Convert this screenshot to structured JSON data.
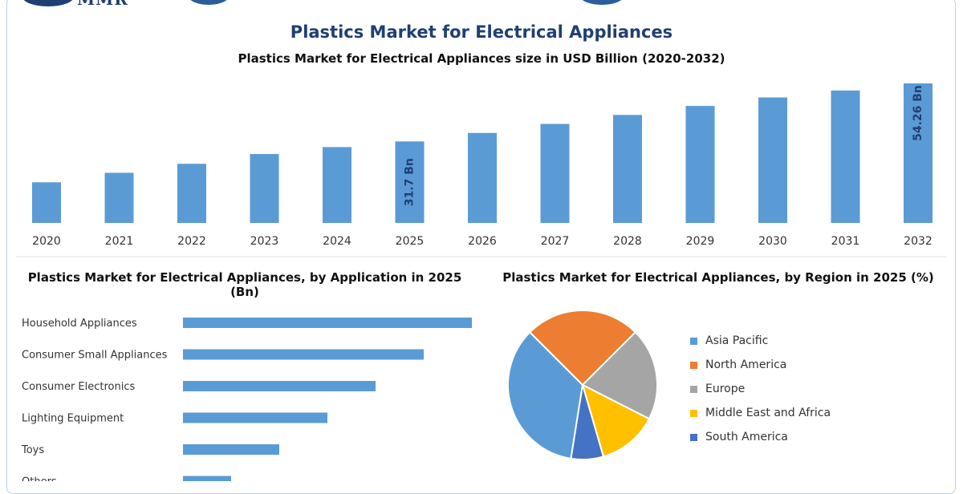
{
  "header": {
    "logo_text": "MMR",
    "title": "Plastics Market for Electrical Appliances",
    "subtitle": "Plastics Market for Electrical Appliances size in USD Billion (2020-2032)"
  },
  "colors": {
    "bar": "#5b9bd5",
    "title": "#1f3f73",
    "asia_pacific": "#5b9bd5",
    "north_america": "#ed7d31",
    "europe": "#a5a5a5",
    "middle_east_africa": "#ffc000",
    "south_america": "#4472c4"
  },
  "chart_data": [
    {
      "type": "bar",
      "title": "Plastics Market for Electrical Appliances size in USD Billion (2020-2032)",
      "categories": [
        "2020",
        "2021",
        "2022",
        "2023",
        "2024",
        "2025",
        "2026",
        "2027",
        "2028",
        "2029",
        "2030",
        "2031",
        "2032"
      ],
      "values": [
        15.8,
        19.5,
        23.0,
        26.8,
        29.5,
        31.7,
        35.0,
        38.5,
        42.0,
        45.5,
        48.8,
        51.5,
        54.26
      ],
      "data_labels": {
        "5": "31.7 Bn",
        "12": "54.26 Bn"
      },
      "ylim": [
        0,
        55
      ]
    },
    {
      "type": "bar",
      "orientation": "horizontal",
      "title": "Plastics Market for Electrical Appliances, by Application in 2025 (Bn)",
      "categories": [
        "Household Appliances",
        "Consumer Small Appliances",
        "Consumer Electronics",
        "Lighting Equipment",
        "Toys",
        "Others"
      ],
      "values": [
        12.0,
        10.0,
        8.0,
        6.0,
        4.0,
        2.0
      ],
      "xlim": [
        0,
        12
      ]
    },
    {
      "type": "pie",
      "title": "Plastics Market for Electrical Appliances, by Region in 2025 (%)",
      "categories": [
        "Asia Pacific",
        "North America",
        "Europe",
        "Middle East and Africa",
        "South America"
      ],
      "values": [
        35,
        25,
        20,
        13,
        7
      ],
      "legend_position": "right"
    }
  ]
}
